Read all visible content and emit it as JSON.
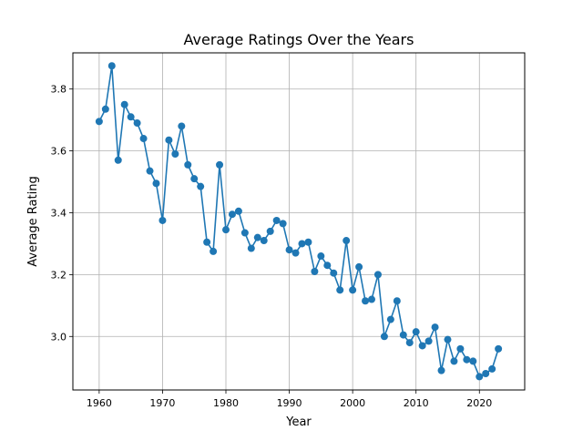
{
  "chart_data": {
    "type": "line",
    "title": "Average Ratings Over the Years",
    "xlabel": "Year",
    "ylabel": "Average Rating",
    "xlim": [
      1955.85,
      2027.15
    ],
    "ylim": [
      2.827,
      3.917
    ],
    "xticks": [
      1960,
      1970,
      1980,
      1990,
      2000,
      2010,
      2020
    ],
    "yticks": [
      3.0,
      3.2,
      3.4,
      3.6,
      3.8
    ],
    "xtick_labels": [
      "1960",
      "1970",
      "1980",
      "1990",
      "2000",
      "2010",
      "2020"
    ],
    "ytick_labels": [
      "3.0",
      "3.2",
      "3.4",
      "3.6",
      "3.8"
    ],
    "grid": true,
    "marker": "circle",
    "color": "#1f77b4",
    "series": [
      {
        "x": [
          1960,
          1961,
          1962,
          1963,
          1964,
          1965,
          1966,
          1967,
          1968,
          1969,
          1970,
          1971,
          1972,
          1973,
          1974,
          1975,
          1976,
          1977,
          1978,
          1979,
          1980,
          1981,
          1982,
          1983,
          1984,
          1985,
          1986,
          1987,
          1988,
          1989,
          1990,
          1991,
          1992,
          1993,
          1994,
          1995,
          1996,
          1997,
          1998,
          1999,
          2000,
          2001,
          2002,
          2003,
          2004,
          2005,
          2006,
          2007,
          2008,
          2009,
          2010,
          2011,
          2012,
          2013,
          2014,
          2015,
          2016,
          2017,
          2018,
          2019,
          2020,
          2021,
          2022,
          2023
        ],
        "values": [
          3.695,
          3.735,
          3.875,
          3.57,
          3.75,
          3.71,
          3.69,
          3.64,
          3.535,
          3.495,
          3.375,
          3.635,
          3.59,
          3.68,
          3.555,
          3.51,
          3.485,
          3.305,
          3.275,
          3.555,
          3.345,
          3.395,
          3.405,
          3.335,
          3.285,
          3.32,
          3.31,
          3.34,
          3.375,
          3.365,
          3.28,
          3.27,
          3.3,
          3.305,
          3.21,
          3.26,
          3.23,
          3.205,
          3.15,
          3.31,
          3.15,
          3.225,
          3.115,
          3.12,
          3.2,
          3.0,
          3.055,
          3.115,
          3.005,
          2.98,
          3.015,
          2.97,
          2.985,
          3.03,
          2.89,
          2.99,
          2.92,
          2.96,
          2.925,
          2.92,
          2.87,
          2.88,
          2.895,
          2.96
        ]
      }
    ]
  }
}
